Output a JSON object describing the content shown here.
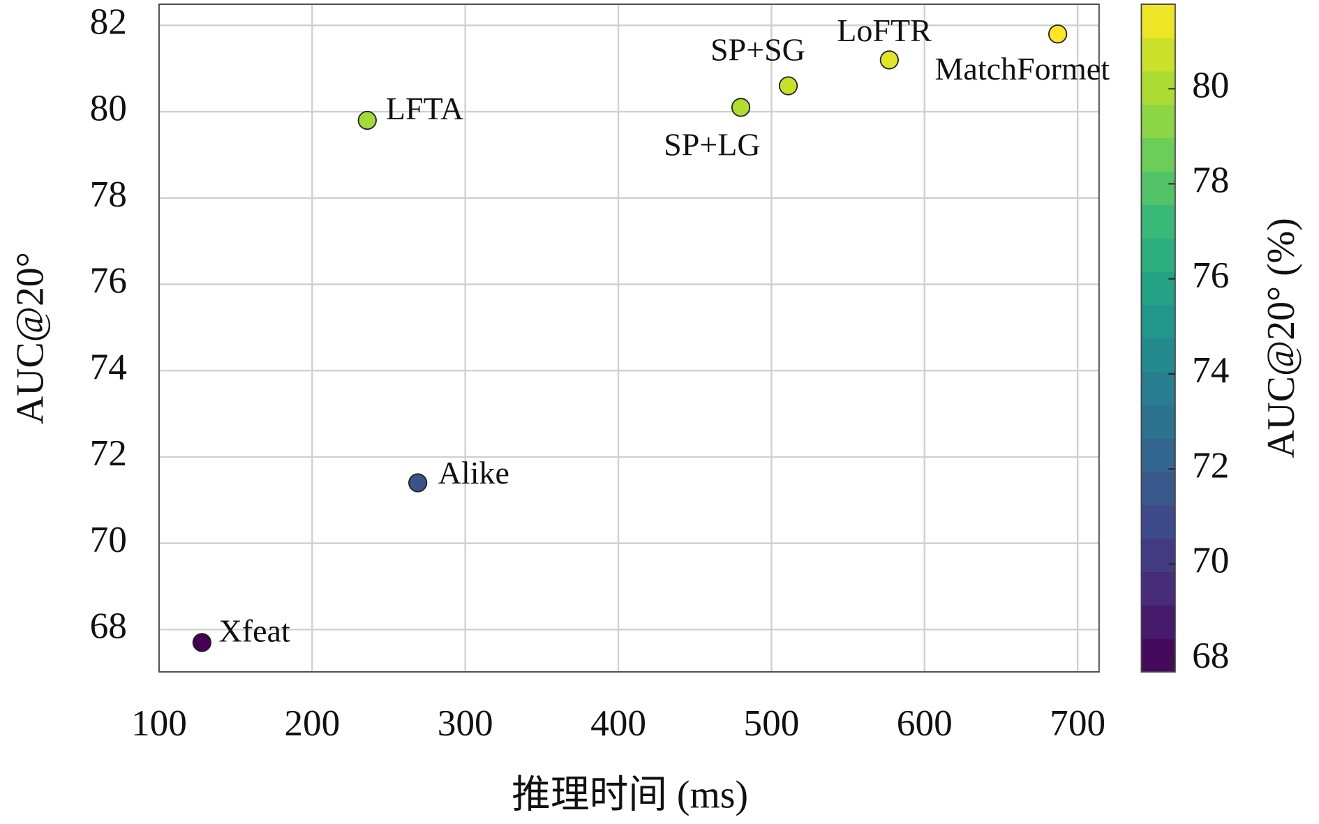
{
  "chart_data": {
    "type": "scatter",
    "xlabel": "推理时间 (ms)",
    "ylabel": "AUC@20°",
    "colorbar_label": "AUC@20° (%)",
    "labels": [
      "Xfeat",
      "Alike",
      "LFTA",
      "SP+LG",
      "SP+SG",
      "LoFTR",
      "MatchFormet"
    ],
    "x": [
      128,
      269,
      236,
      480,
      511,
      577,
      687
    ],
    "values": [
      67.7,
      71.4,
      79.8,
      80.1,
      80.6,
      81.2,
      81.8
    ],
    "xlim": [
      100,
      714
    ],
    "xticks": [
      100,
      200,
      300,
      400,
      500,
      600,
      700
    ],
    "ylim": [
      67.02,
      82.49
    ],
    "yticks": [
      68,
      70,
      72,
      74,
      76,
      78,
      80,
      82
    ],
    "colormap": "viridis",
    "clim": [
      67.73,
      81.78
    ],
    "cticks": [
      68,
      70,
      72,
      74,
      76,
      78,
      80
    ],
    "grid": true
  }
}
